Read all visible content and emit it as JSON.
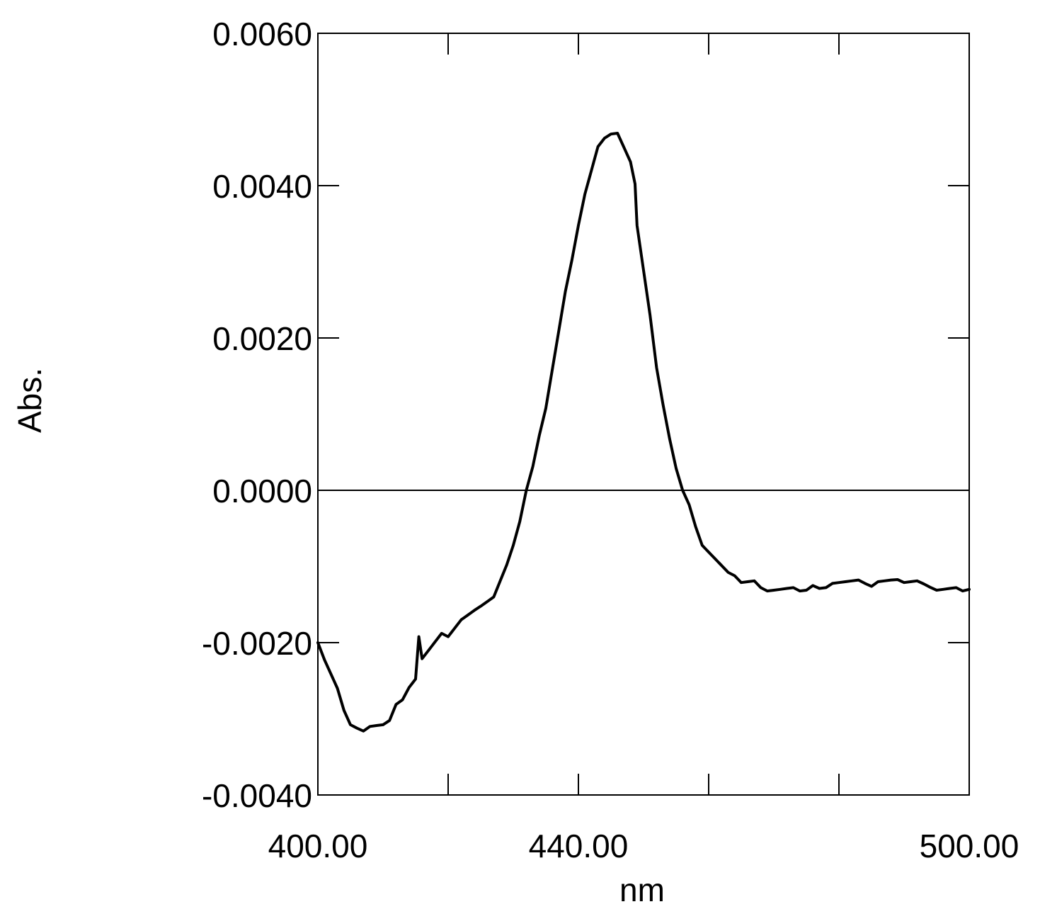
{
  "chart_data": {
    "type": "line",
    "xlabel": "nm",
    "ylabel": "Abs.",
    "xlim": [
      400,
      500
    ],
    "ylim": [
      -0.004,
      0.006
    ],
    "x_ticks": [
      400,
      420,
      440,
      460,
      480,
      500
    ],
    "x_tick_labels": [
      "400.00",
      "",
      "440.00",
      "",
      "",
      "500.00"
    ],
    "y_ticks": [
      -0.004,
      -0.002,
      0.0,
      0.002,
      0.004,
      0.006
    ],
    "y_tick_labels": [
      "-0.0040",
      "-0.0020",
      "0.0000",
      "0.0020",
      "0.0040",
      "0.0060"
    ],
    "zero_line": true,
    "grid": false,
    "line_color": "#000000",
    "series": [
      {
        "x": [
          400,
          401,
          402,
          403,
          404,
          405,
          406,
          407,
          408,
          409,
          410,
          411,
          412,
          413,
          414,
          415,
          415.5,
          416,
          417,
          418,
          419,
          420,
          421,
          422,
          423,
          424,
          425,
          426,
          427,
          428,
          429,
          430,
          431,
          432,
          433,
          434,
          435,
          436,
          437,
          438,
          439,
          440,
          441,
          442,
          443,
          444,
          445,
          446,
          447,
          448,
          448.7,
          449,
          450,
          451,
          452,
          453,
          454,
          455,
          456,
          457,
          458,
          459,
          460,
          461,
          462,
          463,
          464,
          465,
          466,
          467,
          468,
          469,
          470,
          471,
          472,
          473,
          474,
          475,
          476,
          477,
          478,
          479,
          480,
          481,
          482,
          483,
          484,
          485,
          486,
          487,
          488,
          489,
          490,
          491,
          492,
          493,
          494,
          495,
          496,
          497,
          498,
          499,
          500
        ],
        "y": [
          -0.002,
          -0.0022,
          -0.0024,
          -0.0026,
          -0.0029,
          -0.0031,
          -0.0031,
          -0.00315,
          -0.0031,
          -0.0031,
          -0.0031,
          -0.003,
          -0.0028,
          -0.00275,
          -0.0026,
          -0.0025,
          -0.0019,
          -0.0022,
          -0.0021,
          -0.002,
          -0.0019,
          -0.0019,
          -0.0018,
          -0.0017,
          -0.00165,
          -0.0016,
          -0.0015,
          -0.00145,
          -0.0014,
          -0.0012,
          -0.001,
          -0.0007,
          -0.0004,
          0.0,
          0.0003,
          0.0007,
          0.0011,
          0.0016,
          0.0021,
          0.0026,
          0.003,
          0.0035,
          0.0039,
          0.0042,
          0.0045,
          0.0046,
          0.0047,
          0.0047,
          0.0045,
          0.0043,
          0.004,
          0.0035,
          0.0029,
          0.0023,
          0.0016,
          0.0011,
          0.0007,
          0.0003,
          0.0,
          -0.0002,
          -0.0005,
          -0.0007,
          -0.0008,
          -0.0009,
          -0.001,
          -0.0011,
          -0.0011,
          -0.0012,
          -0.0012,
          -0.0012,
          -0.0013,
          -0.0013,
          -0.0013,
          -0.0013,
          -0.0013,
          -0.0013,
          -0.0013,
          -0.0013,
          -0.00125,
          -0.0013,
          -0.0013,
          -0.0012,
          -0.0012,
          -0.0012,
          -0.0012,
          -0.0012,
          -0.0012,
          -0.00125,
          -0.0012,
          -0.0012,
          -0.0012,
          -0.00115,
          -0.0012,
          -0.0012,
          -0.0012,
          -0.00125,
          -0.00125,
          -0.0013,
          -0.0013,
          -0.0013,
          -0.0013,
          -0.0013,
          -0.0013
        ]
      }
    ]
  }
}
